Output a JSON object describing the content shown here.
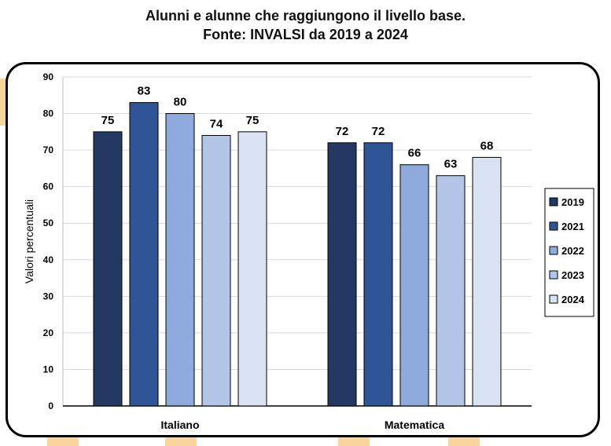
{
  "title_line1": "Alunni e alunne che raggiungono il livello base.",
  "title_line2": "Fonte: INVALSI da 2019 a 2024",
  "chart_data": {
    "type": "bar",
    "categories": [
      "Italiano",
      "Matematica"
    ],
    "series": [
      {
        "name": "2019",
        "values": [
          75,
          72
        ],
        "color": "#233963"
      },
      {
        "name": "2021",
        "values": [
          83,
          72
        ],
        "color": "#2f5597"
      },
      {
        "name": "2022",
        "values": [
          80,
          66
        ],
        "color": "#8faadc"
      },
      {
        "name": "2023",
        "values": [
          74,
          63
        ],
        "color": "#b4c6e7"
      },
      {
        "name": "2024",
        "values": [
          75,
          68
        ],
        "color": "#dae3f3"
      }
    ],
    "ylabel": "Valori percentuali",
    "ylim": [
      0,
      90
    ],
    "yticks": [
      0,
      10,
      20,
      30,
      40,
      50,
      60,
      70,
      80,
      90
    ],
    "grid": true,
    "legend": "right"
  }
}
